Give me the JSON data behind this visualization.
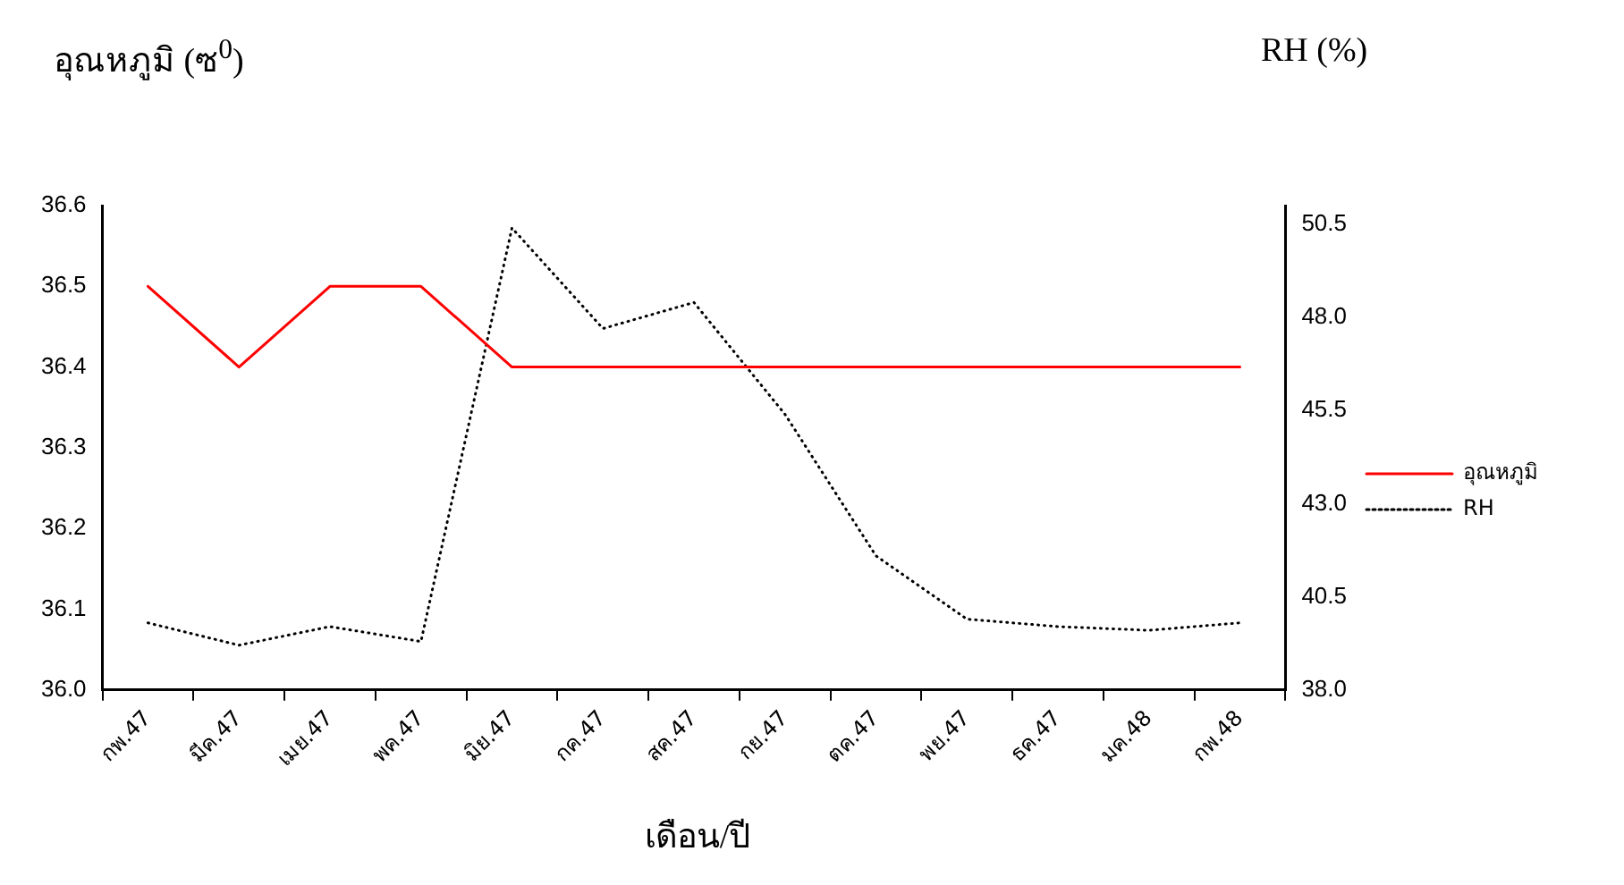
{
  "chart_data": {
    "type": "line",
    "ylabel": "อุณหภูมิ (ซ$^{0}$)",
    "y2label": "RH (%)",
    "xlabel": "เดือน/ปี",
    "categories": [
      "กพ.47",
      "มีค.47",
      "เมย.47",
      "พค.47",
      "มิย.47",
      "กค.47",
      "สค.47",
      "กย.47",
      "ตค.47",
      "พย.47",
      "ธค.47",
      "มค.48",
      "กพ.48"
    ],
    "series": [
      {
        "name": "อุณหภูมิ",
        "color": "#ff0000",
        "line_style": "solid",
        "values": [
          36.5,
          36.4,
          36.5,
          36.5,
          36.4,
          36.4,
          36.4,
          36.4,
          36.4,
          36.4,
          36.4,
          36.4,
          36.4
        ]
      },
      {
        "name": "RH",
        "color": "#000000",
        "line_style": "dotted",
        "axis": "y2",
        "values": [
          39.8,
          39.2,
          39.7,
          39.3,
          50.4,
          47.7,
          48.4,
          45.4,
          41.6,
          39.9,
          39.7,
          39.6,
          39.8
        ]
      }
    ],
    "ylim": [
      36.0,
      36.6
    ],
    "yticks": [
      {
        "value": 36.0,
        "label": "36.0"
      },
      36.1,
      36.2,
      36.3,
      36.4,
      36.5,
      36.6
    ],
    "y2lim": [
      38.0,
      51.0
    ],
    "y2ticks": [
      {
        "value": 38.0,
        "label": "38.0"
      },
      40.5,
      {
        "value": 43.0,
        "label": "43.0"
      },
      45.5,
      {
        "value": 48.0,
        "label": "48.0"
      },
      50.5
    ],
    "grid": false,
    "legend": "right",
    "marker": "none"
  }
}
